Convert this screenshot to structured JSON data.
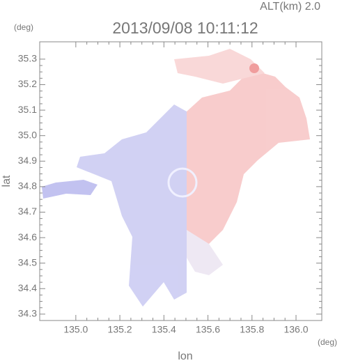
{
  "chart_data": {
    "type": "radar-field",
    "title": "2013/09/08 10:11:12",
    "annotation": "ALT(km) 2.0",
    "x_label": "lon",
    "y_label": "lat",
    "x_unit": "(deg)",
    "y_unit": "(deg)",
    "xlim": [
      134.836,
      136.117
    ],
    "ylim": [
      34.275,
      35.368
    ],
    "xticks": [
      {
        "value": 135,
        "label": "135.0"
      },
      135.2,
      135.4,
      135.6,
      135.8,
      {
        "value": 136,
        "label": "136.0"
      }
    ],
    "yticks": [
      34.3,
      34.4,
      34.5,
      34.6,
      34.7,
      34.8,
      34.9,
      {
        "value": 35,
        "label": "35.0"
      },
      35.1,
      35.2,
      35.3
    ]
  }
}
